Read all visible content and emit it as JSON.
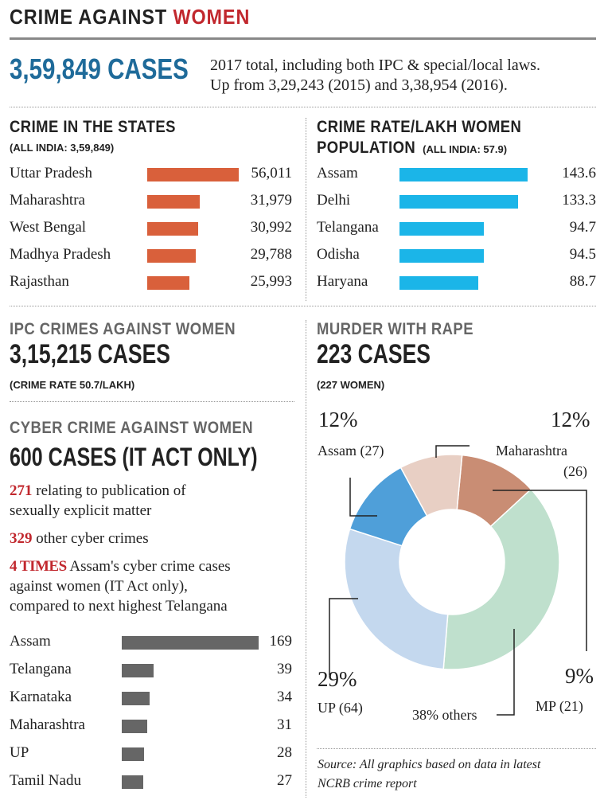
{
  "title": {
    "part1": "CRIME AGAINST",
    "part2": "WOMEN"
  },
  "colors": {
    "accent_red": "#c1272d",
    "headline_blue": "#1f6b9a",
    "bar_orange": "#d9603b",
    "bar_cyan": "#1bb5e8",
    "bar_grey": "#666666"
  },
  "total": {
    "cases": "3,59,849 CASES",
    "desc_line1": "2017 total, including both IPC & special/local laws.",
    "desc_line2": "Up from 3,29,243 (2015) and 3,38,954 (2016)."
  },
  "states": {
    "heading": "CRIME IN THE STATES",
    "subheading": "(ALL INDIA: 3,59,849)"
  },
  "rates": {
    "heading_line1": "CRIME RATE/LAKH WOMEN",
    "heading_line2": "POPULATION",
    "heading_suffix": "(ALL INDIA: 57.9)"
  },
  "ipc": {
    "heading": "IPC CRIMES AGAINST WOMEN",
    "cases": "3,15,215 CASES",
    "note": "(CRIME RATE 50.7/LAKH)"
  },
  "murder": {
    "heading": "MURDER WITH RAPE",
    "cases": "223 CASES",
    "note": "(227 WOMEN)"
  },
  "cyber": {
    "heading": "CYBER CRIME AGAINST WOMEN",
    "cases": "600 CASES (IT ACT ONLY)",
    "item1_num": "271",
    "item1_line1": " relating to publication of",
    "item1_line2": "sexually explicit matter",
    "item2_num": "329",
    "item2_text": " other cyber crimes",
    "item3_num": "4 TIMES",
    "item3_line1": " Assam's cyber crime cases",
    "item3_line2": "against women (IT Act only),",
    "item3_line3": "compared to next highest Telangana"
  },
  "donut_labels": {
    "assam_pct": "12%",
    "assam_label": "Assam (27)",
    "maha_pct": "12%",
    "maha_label1": "Maharashtra",
    "maha_label2": "(26)",
    "up_pct": "29%",
    "up_label": "UP (64)",
    "others_label": "38% others",
    "mp_pct": "9%",
    "mp_label": "MP (21)"
  },
  "source": {
    "line1": "Source: All graphics based on data in latest",
    "line2": "NCRB crime report"
  },
  "chart_data": [
    {
      "type": "bar",
      "title": "CRIME IN THE STATES",
      "categories": [
        "Uttar Pradesh",
        "Maharashtra",
        "West Bengal",
        "Madhya Pradesh",
        "Rajasthan"
      ],
      "values": [
        56011,
        31979,
        30992,
        29788,
        25993
      ],
      "value_labels": [
        "56,011",
        "31,979",
        "30,992",
        "29,788",
        "25,993"
      ],
      "color": "#d9603b"
    },
    {
      "type": "bar",
      "title": "CRIME RATE/LAKH WOMEN POPULATION",
      "categories": [
        "Assam",
        "Delhi",
        "Telangana",
        "Odisha",
        "Haryana"
      ],
      "values": [
        143.6,
        133.3,
        94.7,
        94.5,
        88.7
      ],
      "value_labels": [
        "143.6",
        "133.3",
        "94.7",
        "94.5",
        "88.7"
      ],
      "color": "#1bb5e8"
    },
    {
      "type": "bar",
      "title": "CYBER CRIME AGAINST WOMEN",
      "categories": [
        "Assam",
        "Telangana",
        "Karnataka",
        "Maharashtra",
        "UP",
        "Tamil Nadu"
      ],
      "values": [
        169,
        39,
        34,
        31,
        28,
        27
      ],
      "value_labels": [
        "169",
        "39",
        "34",
        "31",
        "28",
        "27"
      ],
      "color": "#666666"
    },
    {
      "type": "pie",
      "title": "MURDER WITH RAPE",
      "categories": [
        "Maharashtra",
        "others",
        "UP",
        "Assam",
        "MP"
      ],
      "values": [
        26,
        85,
        64,
        27,
        21
      ],
      "percents": [
        "12%",
        "38%",
        "29%",
        "12%",
        "9%"
      ],
      "colors": [
        "#c98d74",
        "#bfe0cd",
        "#c4d8ee",
        "#4f9fd9",
        "#e8cfc4"
      ]
    }
  ]
}
